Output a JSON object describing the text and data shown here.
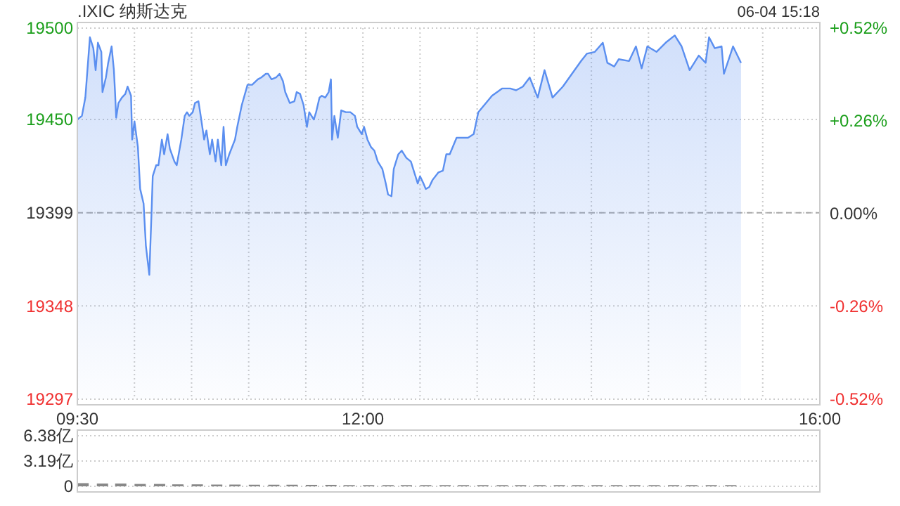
{
  "chart_data": [
    {
      "type": "area",
      "title": ".IXIC 纳斯达克",
      "annotations": [
        "06-04 15:18"
      ],
      "xlim": [
        9.5,
        16
      ],
      "xticks": [
        {
          "value": 9.5,
          "label": "09:30"
        },
        {
          "value": 10,
          "label": null
        },
        {
          "value": 10.5,
          "label": null
        },
        {
          "value": 11,
          "label": null
        },
        {
          "value": 11.5,
          "label": null
        },
        {
          "value": 12,
          "label": "12:00"
        },
        {
          "value": 12.5,
          "label": null
        },
        {
          "value": 13,
          "label": null
        },
        {
          "value": 13.5,
          "label": null
        },
        {
          "value": 14,
          "label": null
        },
        {
          "value": 14.5,
          "label": null
        },
        {
          "value": 15,
          "label": null
        },
        {
          "value": 15.5,
          "label": null
        },
        {
          "value": 16,
          "label": "16:00"
        }
      ],
      "ylim": [
        19297,
        19500
      ],
      "yticks": [
        19297,
        19348,
        19399,
        19450,
        19500
      ],
      "y2lim": [
        -0.52,
        0.52
      ],
      "y2ticks": [
        {
          "value": -0.52,
          "label": "-0.52%"
        },
        {
          "value": -0.26,
          "label": "-0.26%"
        },
        {
          "value": 0,
          "label": "0.00%"
        },
        {
          "value": 0.26,
          "label": "+0.26%"
        },
        {
          "value": 0.52,
          "label": "+0.52%"
        }
      ],
      "grid": true,
      "ref_lines": [
        {
          "axis": "y",
          "value": 19399,
          "color": "#aaaaaa",
          "line_style": "dashed"
        }
      ],
      "series": [
        {
          "color": "#5b8ff0",
          "x": [
            9.5,
            9.54,
            9.57,
            9.61,
            9.64,
            9.66,
            9.68,
            9.71,
            9.72,
            9.75,
            9.77,
            9.8,
            9.82,
            9.83,
            9.84,
            9.86,
            9.89,
            9.92,
            9.94,
            9.97,
            9.98,
            10,
            10.03,
            10.05,
            10.08,
            10.1,
            10.13,
            10.15,
            10.16,
            10.19,
            10.21,
            10.24,
            10.26,
            10.29,
            10.31,
            10.35,
            10.37,
            10.41,
            10.44,
            10.46,
            10.48,
            10.51,
            10.53,
            10.56,
            10.58,
            10.61,
            10.63,
            10.66,
            10.68,
            10.71,
            10.73,
            10.76,
            10.78,
            10.8,
            10.83,
            10.88,
            10.9,
            10.94,
            10.99,
            11.03,
            11.08,
            11.11,
            11.15,
            11.17,
            11.2,
            11.24,
            11.27,
            11.3,
            11.32,
            11.36,
            11.4,
            11.42,
            11.45,
            11.48,
            11.51,
            11.53,
            11.57,
            11.59,
            11.62,
            11.64,
            11.67,
            11.7,
            11.72,
            11.73,
            11.75,
            11.78,
            11.81,
            11.85,
            11.89,
            11.93,
            11.95,
            11.99,
            12.01,
            12.04,
            12.07,
            12.1,
            12.13,
            12.17,
            12.2,
            12.22,
            12.25,
            12.27,
            12.31,
            12.34,
            12.38,
            12.42,
            12.44,
            12.48,
            12.5,
            12.53,
            12.55,
            12.58,
            12.61,
            12.66,
            12.7,
            12.73,
            12.76,
            12.82,
            12.92,
            12.97,
            13.01,
            13.13,
            13.22,
            13.29,
            13.34,
            13.4,
            13.46,
            13.53,
            13.59,
            13.66,
            13.75,
            13.83,
            13.91,
            13.96,
            14.03,
            14.1,
            14.14,
            14.2,
            14.24,
            14.33,
            14.39,
            14.44,
            14.49,
            14.57,
            14.65,
            14.73,
            14.79,
            14.86,
            14.94,
            15,
            15.03,
            15.08,
            15.14,
            15.16,
            15.24,
            15.31
          ],
          "values": [
            19450,
            19452,
            19462,
            19495,
            19489,
            19477,
            19492,
            19487,
            19465,
            19473,
            19481,
            19490,
            19477,
            19465,
            19451,
            19459,
            19462,
            19464,
            19468,
            19463,
            19439,
            19449,
            19435,
            19412,
            19404,
            19381,
            19365,
            19400,
            19419,
            19425,
            19425,
            19439,
            19431,
            19442,
            19434,
            19427,
            19425,
            19439,
            19452,
            19454,
            19452,
            19454,
            19459,
            19460,
            19452,
            19439,
            19444,
            19431,
            19439,
            19427,
            19439,
            19425,
            19446,
            19425,
            19431,
            19439,
            19446,
            19458,
            19469,
            19469,
            19472,
            19473,
            19475,
            19475,
            19472,
            19473,
            19475,
            19471,
            19465,
            19459,
            19460,
            19465,
            19464,
            19458,
            19446,
            19454,
            19450,
            19454,
            19462,
            19463,
            19462,
            19465,
            19472,
            19439,
            19452,
            19440,
            19455,
            19454,
            19454,
            19452,
            19446,
            19442,
            19446,
            19439,
            19435,
            19433,
            19427,
            19423,
            19415,
            19409,
            19408,
            19423,
            19431,
            19433,
            19429,
            19427,
            19423,
            19415,
            19419,
            19415,
            19412,
            19413,
            19417,
            19421,
            19422,
            19431,
            19431,
            19440,
            19440,
            19442,
            19454,
            19463,
            19467,
            19467,
            19466,
            19468,
            19473,
            19462,
            19477,
            19462,
            19468,
            19475,
            19482,
            19486,
            19487,
            19492,
            19481,
            19479,
            19483,
            19482,
            19490,
            19478,
            19490,
            19487,
            19492,
            19496,
            19490,
            19477,
            19485,
            19481,
            19495,
            19489,
            19490,
            19475,
            19490,
            19481
          ]
        }
      ]
    },
    {
      "type": "bar",
      "xlim": [
        9.5,
        16
      ],
      "ylim": [
        0,
        6.38
      ],
      "yticks": [
        0,
        {
          "value": 3.19,
          "label": "3.19亿"
        },
        {
          "value": 6.38,
          "label": "6.38亿"
        }
      ],
      "grid": "y",
      "tick_labels": "y",
      "x": [
        9.55,
        9.72,
        9.88,
        10.05,
        10.22,
        10.38,
        10.55,
        10.72,
        10.88,
        11.05,
        11.22,
        11.38,
        11.55,
        11.72,
        11.88,
        12.05,
        12.22,
        12.38,
        12.55,
        12.72,
        12.88,
        13.05,
        13.22,
        13.38,
        13.55,
        13.72,
        13.88,
        14.05,
        14.22,
        14.38,
        14.55,
        14.72,
        14.88,
        15.05,
        15.22
      ],
      "series": [
        {
          "color": "#888888",
          "values": [
            0.4,
            0.35,
            0.35,
            0.3,
            0.3,
            0.25,
            0.25,
            0.22,
            0.22,
            0.2,
            0.2,
            0.2,
            0.18,
            0.18,
            0.15,
            0.15,
            0.15,
            0.15,
            0.15,
            0.15,
            0.15,
            0.15,
            0.15,
            0.15,
            0.15,
            0.15,
            0.15,
            0.15,
            0.15,
            0.15,
            0.15,
            0.15,
            0.15,
            0.15,
            0.15
          ]
        }
      ]
    }
  ]
}
